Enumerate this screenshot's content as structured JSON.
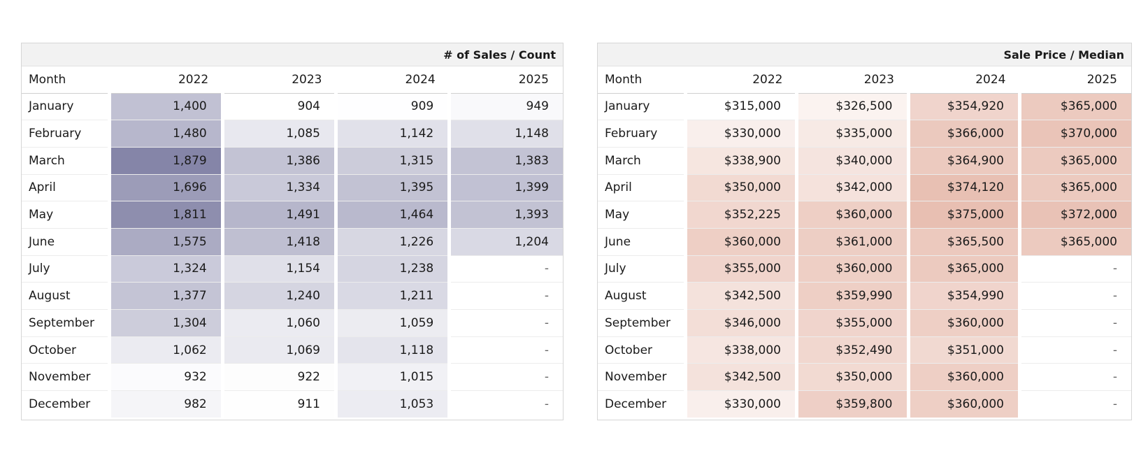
{
  "chart_data": [
    {
      "type": "table",
      "title": "# of Sales / Count",
      "columns": [
        "Month",
        "2022",
        "2023",
        "2024",
        "2025"
      ],
      "rows": [
        {
          "month": "January",
          "values": [
            "1,400",
            "904",
            "909",
            "949"
          ],
          "nums": [
            1400,
            904,
            909,
            949
          ]
        },
        {
          "month": "February",
          "values": [
            "1,480",
            "1,085",
            "1,142",
            "1,148"
          ],
          "nums": [
            1480,
            1085,
            1142,
            1148
          ]
        },
        {
          "month": "March",
          "values": [
            "1,879",
            "1,386",
            "1,315",
            "1,383"
          ],
          "nums": [
            1879,
            1386,
            1315,
            1383
          ]
        },
        {
          "month": "April",
          "values": [
            "1,696",
            "1,334",
            "1,395",
            "1,399"
          ],
          "nums": [
            1696,
            1334,
            1395,
            1399
          ]
        },
        {
          "month": "May",
          "values": [
            "1,811",
            "1,491",
            "1,464",
            "1,393"
          ],
          "nums": [
            1811,
            1491,
            1464,
            1393
          ]
        },
        {
          "month": "June",
          "values": [
            "1,575",
            "1,418",
            "1,226",
            "1,204"
          ],
          "nums": [
            1575,
            1418,
            1226,
            1204
          ]
        },
        {
          "month": "July",
          "values": [
            "1,324",
            "1,154",
            "1,238",
            "-"
          ],
          "nums": [
            1324,
            1154,
            1238,
            null
          ]
        },
        {
          "month": "August",
          "values": [
            "1,377",
            "1,240",
            "1,211",
            "-"
          ],
          "nums": [
            1377,
            1240,
            1211,
            null
          ]
        },
        {
          "month": "September",
          "values": [
            "1,304",
            "1,060",
            "1,059",
            "-"
          ],
          "nums": [
            1304,
            1060,
            1059,
            null
          ]
        },
        {
          "month": "October",
          "values": [
            "1,062",
            "1,069",
            "1,118",
            "-"
          ],
          "nums": [
            1062,
            1069,
            1118,
            null
          ]
        },
        {
          "month": "November",
          "values": [
            "932",
            "922",
            "1,015",
            "-"
          ],
          "nums": [
            932,
            922,
            1015,
            null
          ]
        },
        {
          "month": "December",
          "values": [
            "982",
            "911",
            "1,053",
            "-"
          ],
          "nums": [
            982,
            911,
            1053,
            null
          ]
        }
      ],
      "color_scale": {
        "low": "#ffffff",
        "high": "#8585a8"
      }
    },
    {
      "type": "table",
      "title": "Sale Price / Median",
      "columns": [
        "Month",
        "2022",
        "2023",
        "2024",
        "2025"
      ],
      "rows": [
        {
          "month": "January",
          "values": [
            "$315,000",
            "$326,500",
            "$354,920",
            "$365,000"
          ],
          "nums": [
            315000,
            326500,
            354920,
            365000
          ]
        },
        {
          "month": "February",
          "values": [
            "$330,000",
            "$335,000",
            "$366,000",
            "$370,000"
          ],
          "nums": [
            330000,
            335000,
            366000,
            370000
          ]
        },
        {
          "month": "March",
          "values": [
            "$338,900",
            "$340,000",
            "$364,900",
            "$365,000"
          ],
          "nums": [
            338900,
            340000,
            364900,
            365000
          ]
        },
        {
          "month": "April",
          "values": [
            "$350,000",
            "$342,000",
            "$374,120",
            "$365,000"
          ],
          "nums": [
            350000,
            342000,
            374120,
            365000
          ]
        },
        {
          "month": "May",
          "values": [
            "$352,225",
            "$360,000",
            "$375,000",
            "$372,000"
          ],
          "nums": [
            352225,
            360000,
            375000,
            372000
          ]
        },
        {
          "month": "June",
          "values": [
            "$360,000",
            "$361,000",
            "$365,500",
            "$365,000"
          ],
          "nums": [
            360000,
            361000,
            365500,
            365000
          ]
        },
        {
          "month": "July",
          "values": [
            "$355,000",
            "$360,000",
            "$365,000",
            "-"
          ],
          "nums": [
            355000,
            360000,
            365000,
            null
          ]
        },
        {
          "month": "August",
          "values": [
            "$342,500",
            "$359,990",
            "$354,990",
            "-"
          ],
          "nums": [
            342500,
            359990,
            354990,
            null
          ]
        },
        {
          "month": "September",
          "values": [
            "$346,000",
            "$355,000",
            "$360,000",
            "-"
          ],
          "nums": [
            346000,
            355000,
            360000,
            null
          ]
        },
        {
          "month": "October",
          "values": [
            "$338,000",
            "$352,490",
            "$351,000",
            "-"
          ],
          "nums": [
            338000,
            352490,
            351000,
            null
          ]
        },
        {
          "month": "November",
          "values": [
            "$342,500",
            "$350,000",
            "$360,000",
            "-"
          ],
          "nums": [
            342500,
            350000,
            360000,
            null
          ]
        },
        {
          "month": "December",
          "values": [
            "$330,000",
            "$359,800",
            "$360,000",
            "-"
          ],
          "nums": [
            330000,
            359800,
            360000,
            null
          ]
        }
      ],
      "color_scale": {
        "low": "#ffffff",
        "high": "#e8bfb2"
      }
    }
  ]
}
